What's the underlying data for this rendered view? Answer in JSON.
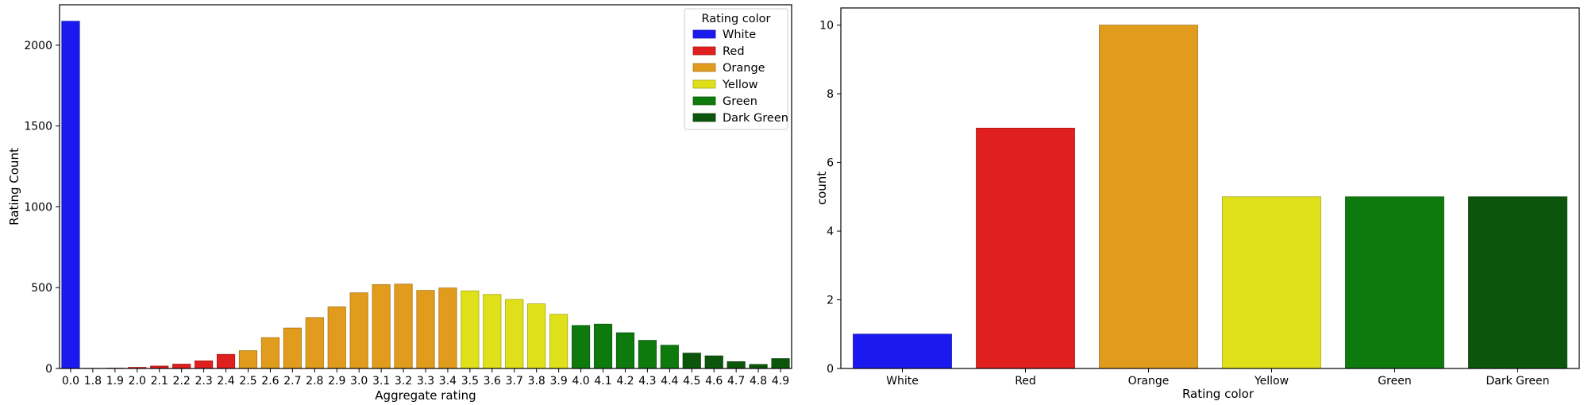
{
  "chart_data": [
    {
      "type": "bar",
      "xlabel": "Aggregate rating",
      "ylabel": "Rating Count",
      "ylim": [
        0,
        2250
      ],
      "yticks": [
        0,
        500,
        1000,
        1500,
        2000
      ],
      "categories": [
        "0.0",
        "1.8",
        "1.9",
        "2.0",
        "2.1",
        "2.2",
        "2.3",
        "2.4",
        "2.5",
        "2.6",
        "2.7",
        "2.8",
        "2.9",
        "3.0",
        "3.1",
        "3.2",
        "3.3",
        "3.4",
        "3.5",
        "3.6",
        "3.7",
        "3.8",
        "3.9",
        "4.0",
        "4.1",
        "4.2",
        "4.3",
        "4.4",
        "4.5",
        "4.6",
        "4.7",
        "4.8",
        "4.9"
      ],
      "values": [
        2148,
        1,
        2,
        7,
        15,
        27,
        47,
        87,
        110,
        191,
        250,
        315,
        381,
        468,
        519,
        522,
        483,
        498,
        480,
        458,
        427,
        400,
        335,
        266,
        274,
        221,
        174,
        144,
        95,
        78,
        42,
        25,
        61
      ],
      "hue": [
        "White",
        "Red",
        "Red",
        "Red",
        "Red",
        "Red",
        "Red",
        "Red",
        "Orange",
        "Orange",
        "Orange",
        "Orange",
        "Orange",
        "Orange",
        "Orange",
        "Orange",
        "Orange",
        "Orange",
        "Yellow",
        "Yellow",
        "Yellow",
        "Yellow",
        "Yellow",
        "Green",
        "Green",
        "Green",
        "Green",
        "Green",
        "Dark Green",
        "Dark Green",
        "Dark Green",
        "Dark Green",
        "Dark Green"
      ],
      "legend": {
        "title": "Rating color",
        "placement": "top-right",
        "entries": [
          "White",
          "Red",
          "Orange",
          "Yellow",
          "Green",
          "Dark Green"
        ]
      },
      "grid": false
    },
    {
      "type": "bar",
      "xlabel": "Rating color",
      "ylabel": "count",
      "ylim": [
        0,
        10.5
      ],
      "yticks": [
        0,
        2,
        4,
        6,
        8,
        10
      ],
      "categories": [
        "White",
        "Red",
        "Orange",
        "Yellow",
        "Green",
        "Dark Green"
      ],
      "values": [
        1,
        7,
        10,
        5,
        5,
        5
      ],
      "grid": false
    }
  ],
  "colors": {
    "White": "#1a1aee",
    "Red": "#e01f1f",
    "Orange": "#e29c1d",
    "Yellow": "#e0e01a",
    "Green": "#0e7a0e",
    "Dark Green": "#0c560c"
  }
}
